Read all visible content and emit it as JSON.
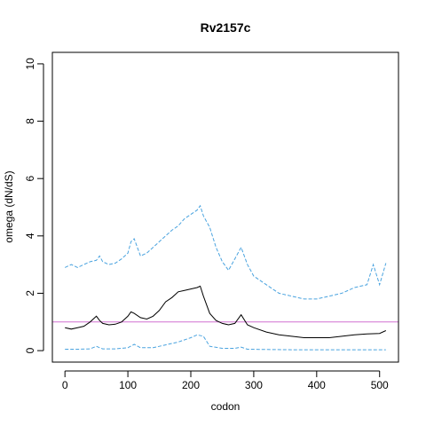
{
  "chart_data": {
    "type": "line",
    "title": "Rv2157c",
    "xlabel": "codon",
    "ylabel": "omega (dN/dS)",
    "xlim": [
      -20,
      530
    ],
    "ylim": [
      -0.4,
      10.4
    ],
    "xticks": [
      0,
      100,
      200,
      300,
      400,
      500
    ],
    "yticks": [
      0,
      2,
      4,
      6,
      8,
      10
    ],
    "grid": false,
    "legend": "none",
    "reference_line": {
      "y": 1,
      "color": "#d070d0"
    },
    "series": [
      {
        "style": "solid",
        "color": "#000000",
        "x": [
          0,
          10,
          20,
          30,
          40,
          50,
          55,
          60,
          70,
          80,
          90,
          100,
          105,
          110,
          120,
          130,
          140,
          150,
          160,
          170,
          180,
          190,
          200,
          210,
          215,
          220,
          230,
          240,
          250,
          260,
          270,
          280,
          290,
          300,
          320,
          340,
          360,
          380,
          400,
          420,
          440,
          460,
          480,
          500,
          510
        ],
        "y": [
          0.8,
          0.75,
          0.8,
          0.85,
          1.0,
          1.2,
          1.05,
          0.95,
          0.9,
          0.92,
          1.0,
          1.2,
          1.35,
          1.3,
          1.15,
          1.1,
          1.2,
          1.4,
          1.7,
          1.85,
          2.05,
          2.1,
          2.15,
          2.2,
          2.25,
          1.9,
          1.3,
          1.05,
          0.95,
          0.9,
          0.95,
          1.25,
          0.9,
          0.8,
          0.65,
          0.55,
          0.5,
          0.45,
          0.45,
          0.45,
          0.5,
          0.55,
          0.58,
          0.6,
          0.7
        ]
      },
      {
        "style": "dashed",
        "color": "#4aa3df",
        "x": [
          0,
          10,
          20,
          30,
          40,
          50,
          55,
          60,
          70,
          80,
          90,
          100,
          105,
          110,
          120,
          130,
          140,
          150,
          160,
          170,
          180,
          190,
          200,
          210,
          215,
          220,
          230,
          240,
          250,
          260,
          270,
          280,
          290,
          300,
          320,
          340,
          360,
          380,
          400,
          420,
          440,
          460,
          480,
          490,
          500,
          510
        ],
        "y": [
          2.9,
          3.0,
          2.9,
          3.0,
          3.1,
          3.15,
          3.3,
          3.1,
          3.0,
          3.05,
          3.2,
          3.4,
          3.8,
          3.9,
          3.3,
          3.4,
          3.6,
          3.8,
          4.0,
          4.2,
          4.35,
          4.6,
          4.75,
          4.9,
          5.05,
          4.7,
          4.3,
          3.6,
          3.1,
          2.8,
          3.2,
          3.6,
          3.0,
          2.6,
          2.3,
          2.0,
          1.9,
          1.8,
          1.8,
          1.9,
          2.0,
          2.2,
          2.3,
          3.0,
          2.3,
          3.05
        ]
      },
      {
        "style": "dashed",
        "color": "#4aa3df",
        "x": [
          0,
          20,
          40,
          50,
          55,
          60,
          80,
          100,
          110,
          120,
          140,
          160,
          180,
          200,
          210,
          220,
          230,
          250,
          270,
          280,
          290,
          320,
          360,
          400,
          450,
          480,
          510
        ],
        "y": [
          0.05,
          0.05,
          0.06,
          0.15,
          0.1,
          0.06,
          0.06,
          0.1,
          0.22,
          0.1,
          0.1,
          0.2,
          0.3,
          0.45,
          0.55,
          0.5,
          0.15,
          0.08,
          0.08,
          0.12,
          0.05,
          0.04,
          0.03,
          0.03,
          0.03,
          0.03,
          0.03
        ]
      }
    ]
  }
}
